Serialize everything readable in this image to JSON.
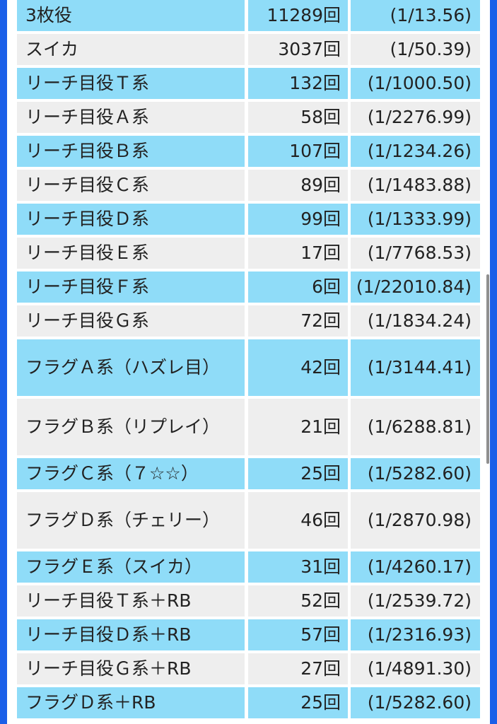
{
  "colors": {
    "row_blue": "#8fdcf8",
    "row_gray": "#eeeeee",
    "edge_blue": "#1a5fe8"
  },
  "table": {
    "rows": [
      {
        "name": "3枚役",
        "count": "11289回",
        "prob": "(1/13.56)"
      },
      {
        "name": "スイカ",
        "count": "3037回",
        "prob": "(1/50.39)"
      },
      {
        "name": "リーチ目役Ｔ系",
        "count": "132回",
        "prob": "(1/1000.50)"
      },
      {
        "name": "リーチ目役Ａ系",
        "count": "58回",
        "prob": "(1/2276.99)"
      },
      {
        "name": "リーチ目役Ｂ系",
        "count": "107回",
        "prob": "(1/1234.26)"
      },
      {
        "name": "リーチ目役Ｃ系",
        "count": "89回",
        "prob": "(1/1483.88)"
      },
      {
        "name": "リーチ目役Ｄ系",
        "count": "99回",
        "prob": "(1/1333.99)"
      },
      {
        "name": "リーチ目役Ｅ系",
        "count": "17回",
        "prob": "(1/7768.53)"
      },
      {
        "name": "リーチ目役Ｆ系",
        "count": "6回",
        "prob": "(1/22010.84)"
      },
      {
        "name": "リーチ目役Ｇ系",
        "count": "72回",
        "prob": "(1/1834.24)"
      },
      {
        "name": "フラグＡ系（ハズレ目）",
        "count": "42回",
        "prob": "(1/3144.41)"
      },
      {
        "name": "フラグＢ系（リプレイ）",
        "count": "21回",
        "prob": "(1/6288.81)"
      },
      {
        "name": "フラグＣ系（７☆☆）",
        "count": "25回",
        "prob": "(1/5282.60)"
      },
      {
        "name": "フラグＤ系（チェリー）",
        "count": "46回",
        "prob": "(1/2870.98)"
      },
      {
        "name": "フラグＥ系（スイカ）",
        "count": "31回",
        "prob": "(1/4260.17)"
      },
      {
        "name": "リーチ目役Ｔ系＋RB",
        "count": "52回",
        "prob": "(1/2539.72)"
      },
      {
        "name": "リーチ目役Ｄ系＋RB",
        "count": "57回",
        "prob": "(1/2316.93)"
      },
      {
        "name": "リーチ目役Ｇ系＋RB",
        "count": "27回",
        "prob": "(1/4891.30)"
      },
      {
        "name": "フラグＤ系＋RB",
        "count": "25回",
        "prob": "(1/5282.60)"
      }
    ]
  }
}
